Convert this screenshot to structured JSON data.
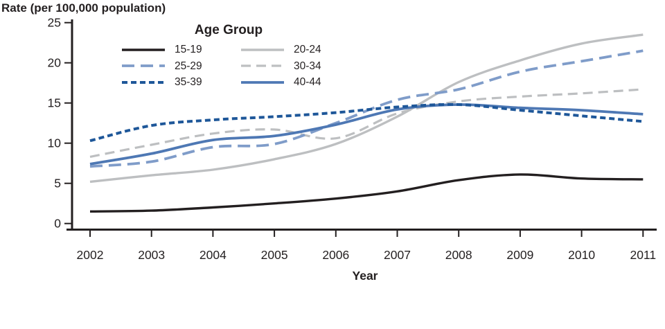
{
  "chart_data": {
    "type": "line",
    "title": "",
    "ylabel": "Rate (per 100,000 population)",
    "xlabel": "Year",
    "x": [
      2002,
      2003,
      2004,
      2005,
      2006,
      2007,
      2008,
      2009,
      2010,
      2011
    ],
    "ylim": [
      0,
      25
    ],
    "yticks": [
      0,
      5,
      10,
      15,
      20,
      25
    ],
    "grid": false,
    "axis_color": "#231f20",
    "legend": {
      "title": "Age Group",
      "columns": [
        [
          "15-19",
          "25-29",
          "35-39"
        ],
        [
          "20-24",
          "30-34",
          "40-44"
        ]
      ]
    },
    "series": [
      {
        "name": "20-24",
        "color": "#bdbfc1",
        "dash": "none",
        "width": 3.4,
        "values": [
          5.2,
          6.0,
          6.7,
          8.0,
          9.9,
          13.3,
          17.6,
          20.3,
          22.4,
          23.5
        ]
      },
      {
        "name": "30-34",
        "color": "#bdbfc1",
        "dash": "14 8",
        "width": 3.2,
        "values": [
          8.3,
          9.8,
          11.2,
          11.7,
          10.6,
          13.7,
          15.2,
          15.8,
          16.2,
          16.7
        ]
      },
      {
        "name": "25-29",
        "color": "#7f9cc9",
        "dash": "18 9",
        "width": 3.8,
        "values": [
          7.1,
          7.7,
          9.5,
          9.9,
          12.5,
          15.4,
          16.7,
          18.9,
          20.2,
          21.5
        ]
      },
      {
        "name": "15-19",
        "color": "#231f20",
        "dash": "none",
        "width": 3.4,
        "values": [
          1.5,
          1.6,
          2.0,
          2.5,
          3.1,
          4.0,
          5.4,
          6.1,
          5.6,
          5.5
        ]
      },
      {
        "name": "40-44",
        "color": "#4e78b4",
        "dash": "none",
        "width": 3.8,
        "values": [
          7.4,
          8.7,
          10.4,
          10.9,
          12.3,
          14.2,
          14.8,
          14.4,
          14.1,
          13.6
        ]
      },
      {
        "name": "35-39",
        "color": "#1e5799",
        "dash": "8 5",
        "width": 4,
        "values": [
          10.3,
          12.2,
          12.9,
          13.3,
          13.8,
          14.5,
          14.8,
          14.1,
          13.4,
          12.7
        ]
      }
    ]
  }
}
